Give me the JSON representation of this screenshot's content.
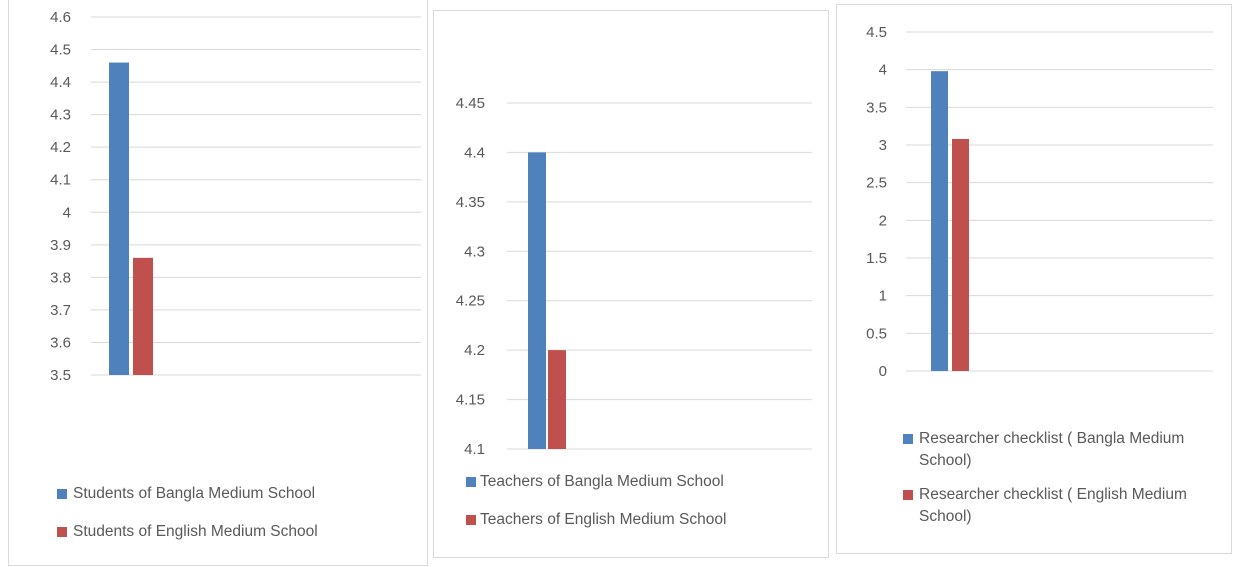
{
  "chart_data": [
    {
      "type": "bar",
      "categories": [
        ""
      ],
      "series": [
        {
          "name": "Students of Bangla Medium School",
          "values": [
            4.46
          ]
        },
        {
          "name": "Students of English Medium School",
          "values": [
            3.86
          ]
        }
      ],
      "ylim": [
        3.5,
        4.6
      ],
      "yticks": [
        "3.5",
        "3.6",
        "3.7",
        "3.8",
        "3.9",
        "4",
        "4.1",
        "4.2",
        "4.3",
        "4.4",
        "4.5",
        "4.6"
      ],
      "grid": true,
      "legend_position": "bottom-left",
      "colors": [
        "#4f81bd",
        "#c0504d"
      ]
    },
    {
      "type": "bar",
      "categories": [
        ""
      ],
      "series": [
        {
          "name": "Teachers of Bangla Medium School",
          "values": [
            4.4
          ]
        },
        {
          "name": "Teachers of English Medium School",
          "values": [
            4.2
          ]
        }
      ],
      "ylim": [
        4.1,
        4.45
      ],
      "yticks": [
        "4.1",
        "4.15",
        "4.2",
        "4.25",
        "4.3",
        "4.35",
        "4.4",
        "4.45"
      ],
      "grid": true,
      "legend_position": "bottom-left",
      "colors": [
        "#4f81bd",
        "#c0504d"
      ]
    },
    {
      "type": "bar",
      "categories": [
        ""
      ],
      "series": [
        {
          "name": "Researcher checklist ( Bangla Medium School)",
          "values": [
            3.98
          ]
        },
        {
          "name": "Researcher checklist ( English Medium School)",
          "values": [
            3.08
          ]
        }
      ],
      "ylim": [
        0,
        4.5
      ],
      "yticks": [
        "0",
        "0.5",
        "1",
        "1.5",
        "2",
        "2.5",
        "3",
        "3.5",
        "4",
        "4.5"
      ],
      "grid": true,
      "legend_position": "bottom-left",
      "colors": [
        "#4f81bd",
        "#c0504d"
      ]
    }
  ]
}
